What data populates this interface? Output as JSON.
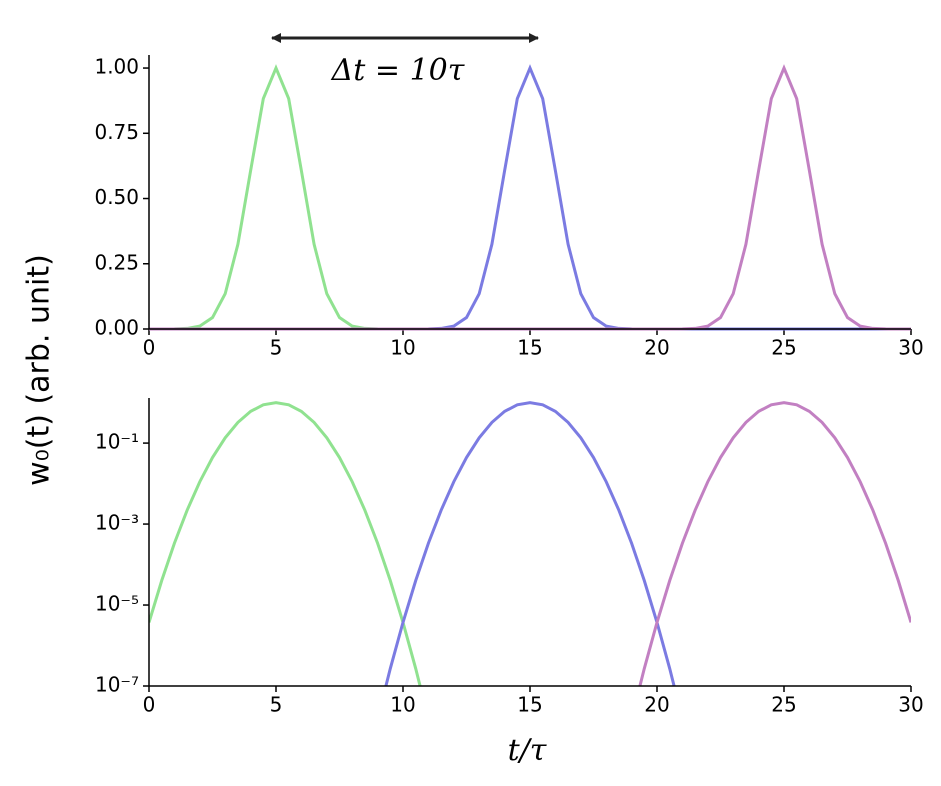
{
  "chart_data": [
    {
      "type": "line",
      "ylabel": "w₀(t) (arb. unit)",
      "annotation": "Δt = 10τ",
      "x": [
        0,
        0.5,
        1,
        1.5,
        2,
        2.5,
        3,
        3.5,
        4,
        4.5,
        5,
        5.5,
        6,
        6.5,
        7,
        7.5,
        8,
        8.5,
        9,
        9.5,
        10,
        10.5,
        11,
        11.5,
        12,
        12.5,
        13,
        13.5,
        14,
        14.5,
        15,
        15.5,
        16,
        16.5,
        17,
        17.5,
        18,
        18.5,
        19,
        19.5,
        20,
        20.5,
        21,
        21.5,
        22,
        22.5,
        23,
        23.5,
        24,
        24.5,
        25,
        25.5,
        26,
        26.5,
        27,
        27.5,
        28,
        28.5,
        29,
        29.5,
        30
      ],
      "series": [
        {
          "color": "#90e290",
          "values": [
            0,
            0,
            0.0003,
            0.0022,
            0.0111,
            0.0439,
            0.1353,
            0.3247,
            0.6065,
            0.8825,
            1,
            0.8825,
            0.6065,
            0.3247,
            0.1353,
            0.0439,
            0.0111,
            0.0022,
            0.0003,
            0,
            0,
            0,
            0,
            0,
            0,
            0,
            0,
            0,
            0,
            0,
            0,
            0,
            0,
            0,
            0,
            0,
            0,
            0,
            0,
            0,
            0,
            0,
            0,
            0,
            0,
            0,
            0,
            0,
            0,
            0,
            0,
            0,
            0,
            0,
            0,
            0,
            0,
            0,
            0,
            0,
            0
          ]
        },
        {
          "color": "#7b7be2",
          "values": [
            0,
            0,
            0,
            0,
            0,
            0,
            0,
            0,
            0,
            0,
            0,
            0,
            0,
            0,
            0,
            0,
            0,
            0,
            0,
            0,
            0,
            0,
            0.0003,
            0.0022,
            0.0111,
            0.0439,
            0.1353,
            0.3247,
            0.6065,
            0.8825,
            1,
            0.8825,
            0.6065,
            0.3247,
            0.1353,
            0.0439,
            0.0111,
            0.0022,
            0.0003,
            0,
            0,
            0,
            0,
            0,
            0,
            0,
            0,
            0,
            0,
            0,
            0,
            0,
            0,
            0,
            0,
            0,
            0,
            0,
            0,
            0,
            0
          ]
        },
        {
          "color": "#c280c2",
          "values": [
            0,
            0,
            0,
            0,
            0,
            0,
            0,
            0,
            0,
            0,
            0,
            0,
            0,
            0,
            0,
            0,
            0,
            0,
            0,
            0,
            0,
            0,
            0,
            0,
            0,
            0,
            0,
            0,
            0,
            0,
            0,
            0,
            0,
            0,
            0,
            0,
            0,
            0,
            0,
            0,
            0,
            0,
            0.0003,
            0.0022,
            0.0111,
            0.0439,
            0.1353,
            0.3247,
            0.6065,
            0.8825,
            1,
            0.8825,
            0.6065,
            0.3247,
            0.1353,
            0.0439,
            0.0111,
            0.0022,
            0.0003,
            0,
            0
          ]
        }
      ],
      "xlim": [
        0,
        30
      ],
      "xticks": [
        0,
        5,
        10,
        15,
        20,
        25,
        30
      ],
      "ylim": [
        0,
        1.05
      ],
      "yticks": [
        {
          "value": 0,
          "label": "0.00"
        },
        {
          "value": 0.25,
          "label": "0.25"
        },
        {
          "value": 0.5,
          "label": "0.50"
        },
        {
          "value": 0.75,
          "label": "0.75"
        },
        {
          "value": 1,
          "label": "1.00"
        }
      ],
      "log_y": false
    },
    {
      "type": "line",
      "xlabel": "t/τ",
      "x": [
        0,
        0.5,
        1,
        1.5,
        2,
        2.5,
        3,
        3.5,
        4,
        4.5,
        5,
        5.5,
        6,
        6.5,
        7,
        7.5,
        8,
        8.5,
        9,
        9.5,
        10,
        10.5,
        11,
        11.5,
        12,
        12.5,
        13,
        13.5,
        14,
        14.5,
        15,
        15.5,
        16,
        16.5,
        17,
        17.5,
        18,
        18.5,
        19,
        19.5,
        20,
        20.5,
        21,
        21.5,
        22,
        22.5,
        23,
        23.5,
        24,
        24.5,
        25,
        25.5,
        26,
        26.5,
        27,
        27.5,
        28,
        28.5,
        29,
        29.5,
        30
      ],
      "series": [
        {
          "color": "#90e290",
          "values": [
            3.727e-06,
            4.007e-05,
            0.0003355,
            0.002187,
            0.01111,
            0.04394,
            0.1353,
            0.3247,
            0.6065,
            0.8825,
            1,
            0.8825,
            0.6065,
            0.3247,
            0.1353,
            0.04394,
            0.01111,
            0.002187,
            0.0003355,
            4.007e-05,
            3.727e-06,
            2.7e-07,
            1.523e-08,
            null,
            null,
            null,
            null,
            null,
            null,
            null,
            null,
            null,
            null,
            null,
            null,
            null,
            null,
            null,
            null,
            null,
            null,
            null,
            null,
            null,
            null,
            null,
            null,
            null,
            null,
            null,
            null,
            null,
            null,
            null,
            null,
            null,
            null,
            null,
            null,
            null,
            null
          ]
        },
        {
          "color": "#7b7be2",
          "values": [
            null,
            null,
            null,
            null,
            null,
            null,
            null,
            null,
            null,
            null,
            null,
            null,
            null,
            null,
            null,
            null,
            null,
            null,
            1.523e-08,
            2.7e-07,
            3.727e-06,
            4.007e-05,
            0.0003355,
            0.002187,
            0.01111,
            0.04394,
            0.1353,
            0.3247,
            0.6065,
            0.8825,
            1,
            0.8825,
            0.6065,
            0.3247,
            0.1353,
            0.04394,
            0.01111,
            0.002187,
            0.0003355,
            4.007e-05,
            3.727e-06,
            2.7e-07,
            1.523e-08,
            null,
            null,
            null,
            null,
            null,
            null,
            null,
            null,
            null,
            null,
            null,
            null,
            null,
            null,
            null,
            null,
            null,
            null
          ]
        },
        {
          "color": "#c280c2",
          "values": [
            null,
            null,
            null,
            null,
            null,
            null,
            null,
            null,
            null,
            null,
            null,
            null,
            null,
            null,
            null,
            null,
            null,
            null,
            null,
            null,
            null,
            null,
            null,
            null,
            null,
            null,
            null,
            null,
            null,
            null,
            null,
            null,
            null,
            null,
            null,
            null,
            null,
            null,
            1.523e-08,
            2.7e-07,
            3.727e-06,
            4.007e-05,
            0.0003355,
            0.002187,
            0.01111,
            0.04394,
            0.1353,
            0.3247,
            0.6065,
            0.8825,
            1,
            0.8825,
            0.6065,
            0.3247,
            0.1353,
            0.04394,
            0.01111,
            0.002187,
            0.0003355,
            4.007e-05,
            3.727e-06
          ]
        }
      ],
      "xlim": [
        0,
        30
      ],
      "xticks": [
        0,
        5,
        10,
        15,
        20,
        25,
        30
      ],
      "ylim": [
        1e-07,
        1.3
      ],
      "yticks": [
        {
          "value": 1e-07,
          "label": "10⁻⁷"
        },
        {
          "value": 1e-05,
          "label": "10⁻⁵"
        },
        {
          "value": 0.001,
          "label": "10⁻³"
        },
        {
          "value": 0.1,
          "label": "10⁻¹"
        }
      ],
      "log_y": true
    }
  ]
}
